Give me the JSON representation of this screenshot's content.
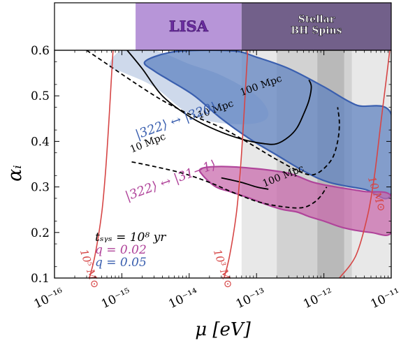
{
  "chart_data": {
    "type": "area",
    "title": "",
    "xlabel": "μ [eV]",
    "ylabel": "αᵢ",
    "xscale": "log",
    "xlim": [
      1e-16,
      1e-11
    ],
    "ylim": [
      0.1,
      0.6
    ],
    "x_ticks": [
      {
        "value": 1e-16,
        "label": "10⁻¹⁶"
      },
      {
        "value": 1e-15,
        "label": "10⁻¹⁵"
      },
      {
        "value": 1e-14,
        "label": "10⁻¹⁴"
      },
      {
        "value": 1e-13,
        "label": "10⁻¹³"
      },
      {
        "value": 1e-12,
        "label": "10⁻¹²"
      },
      {
        "value": 1e-11,
        "label": "10⁻¹¹"
      }
    ],
    "y_ticks": [
      {
        "value": 0.1,
        "label": "0.1"
      },
      {
        "value": 0.2,
        "label": "0.2"
      },
      {
        "value": 0.3,
        "label": "0.3"
      },
      {
        "value": 0.4,
        "label": "0.4"
      },
      {
        "value": 0.5,
        "label": "0.5"
      },
      {
        "value": 0.6,
        "label": "0.6"
      }
    ],
    "top_bands": [
      {
        "label": "LISA",
        "x_range": [
          1.6e-15,
          6e-14
        ],
        "color": "#b795d8",
        "text_color": "#6a2ca0"
      },
      {
        "label_lines": [
          "Stellar",
          "BH Spins"
        ],
        "x_range": [
          6e-14,
          1e-11
        ],
        "color": "#72608a",
        "text_color": "#ffffff"
      }
    ],
    "shaded_bands": [
      {
        "x_range": [
          6e-14,
          1e-11
        ],
        "color": "#e8e8e8"
      },
      {
        "x_range": [
          2e-13,
          2.6e-12
        ],
        "color": "#d2d2d2"
      },
      {
        "x_range": [
          8e-13,
          2e-12
        ],
        "color": "#b9b9b9"
      }
    ],
    "regions": [
      {
        "name": "blue-region-outer",
        "color": "#c5d2e8",
        "points": [
          [
            6.5e-16,
            0.565
          ],
          [
            1e-15,
            0.6
          ],
          [
            3e-15,
            0.6
          ],
          [
            1e-14,
            0.57
          ],
          [
            3e-14,
            0.545
          ],
          [
            1e-13,
            0.5
          ],
          [
            1.5e-13,
            0.46
          ],
          [
            1e-13,
            0.44
          ],
          [
            3e-14,
            0.44
          ],
          [
            1e-14,
            0.46
          ],
          [
            3e-15,
            0.52
          ],
          [
            1.1e-15,
            0.55
          ]
        ]
      },
      {
        "name": "blue-region",
        "color": "#5b7fbf",
        "stroke": "#3a5faf",
        "points": [
          [
            2.2e-15,
            0.575
          ],
          [
            5e-15,
            0.595
          ],
          [
            1.5e-14,
            0.6
          ],
          [
            5e-14,
            0.598
          ],
          [
            1e-13,
            0.585
          ],
          [
            3e-13,
            0.56
          ],
          [
            1e-12,
            0.52
          ],
          [
            3e-12,
            0.48
          ],
          [
            1e-11,
            0.46
          ],
          [
            1e-11,
            0.285
          ],
          [
            4e-12,
            0.295
          ],
          [
            1.2e-12,
            0.31
          ],
          [
            5e-13,
            0.335
          ],
          [
            2e-13,
            0.37
          ],
          [
            8e-14,
            0.405
          ],
          [
            3e-14,
            0.45
          ],
          [
            1.2e-14,
            0.5
          ],
          [
            5e-15,
            0.535
          ],
          [
            3e-15,
            0.555
          ]
        ]
      },
      {
        "name": "magenta-region",
        "color": "#c867aa",
        "stroke": "#b0449a",
        "points": [
          [
            1.5e-14,
            0.34
          ],
          [
            3e-14,
            0.345
          ],
          [
            1e-13,
            0.34
          ],
          [
            3e-13,
            0.33
          ],
          [
            7e-13,
            0.31
          ],
          [
            1.5e-12,
            0.3
          ],
          [
            4e-12,
            0.29
          ],
          [
            1e-11,
            0.28
          ],
          [
            1e-11,
            0.2
          ],
          [
            5e-12,
            0.2
          ],
          [
            2e-12,
            0.21
          ],
          [
            1e-12,
            0.225
          ],
          [
            6e-13,
            0.235
          ],
          [
            4e-13,
            0.245
          ],
          [
            2.5e-13,
            0.25
          ],
          [
            1.5e-13,
            0.26
          ],
          [
            8e-14,
            0.275
          ],
          [
            4e-14,
            0.29
          ],
          [
            2.5e-14,
            0.3
          ],
          [
            1.6e-14,
            0.325
          ]
        ]
      }
    ],
    "series": [
      {
        "name": "solid-blue-100Mpc",
        "style": "solid",
        "color": "#000000",
        "points": [
          [
            1.2e-15,
            0.6
          ],
          [
            2e-15,
            0.56
          ],
          [
            4e-15,
            0.5
          ],
          [
            1e-14,
            0.455
          ],
          [
            2.5e-14,
            0.425
          ],
          [
            6e-14,
            0.405
          ],
          [
            1.3e-13,
            0.395
          ],
          [
            2e-13,
            0.395
          ],
          [
            3e-13,
            0.41
          ],
          [
            4e-13,
            0.43
          ],
          [
            5e-13,
            0.46
          ],
          [
            6e-13,
            0.49
          ],
          [
            6.5e-13,
            0.52
          ],
          [
            6e-13,
            0.535
          ]
        ]
      },
      {
        "name": "dashed-blue-10Mpc",
        "style": "dashed",
        "color": "#000000",
        "points": [
          [
            3e-16,
            0.6
          ],
          [
            6e-16,
            0.57
          ],
          [
            1.5e-15,
            0.53
          ],
          [
            4e-15,
            0.49
          ],
          [
            1e-14,
            0.46
          ],
          [
            3e-14,
            0.43
          ],
          [
            8e-14,
            0.395
          ],
          [
            2e-13,
            0.36
          ],
          [
            5e-13,
            0.33
          ],
          [
            8e-13,
            0.33
          ],
          [
            1.3e-12,
            0.36
          ],
          [
            1.6e-12,
            0.4
          ],
          [
            1.7e-12,
            0.44
          ],
          [
            1.6e-12,
            0.475
          ]
        ]
      },
      {
        "name": "solid-magenta-100Mpc",
        "style": "solid",
        "color": "#000000",
        "points": [
          [
            3e-14,
            0.32
          ],
          [
            6e-14,
            0.31
          ],
          [
            1e-13,
            0.3
          ],
          [
            1.5e-13,
            0.295
          ]
        ]
      },
      {
        "name": "dashed-magenta-10Mpc",
        "style": "dashed",
        "color": "#000000",
        "points": [
          [
            1.4e-15,
            0.355
          ],
          [
            3e-15,
            0.345
          ],
          [
            8e-15,
            0.33
          ],
          [
            2e-14,
            0.31
          ],
          [
            5e-14,
            0.285
          ],
          [
            1.2e-13,
            0.265
          ],
          [
            3e-13,
            0.255
          ],
          [
            5e-13,
            0.255
          ],
          [
            7e-13,
            0.265
          ],
          [
            9e-13,
            0.28
          ],
          [
            1.1e-12,
            0.3
          ]
        ]
      },
      {
        "name": "red-1e5-Msun",
        "style": "solid",
        "color": "#d64545",
        "points": [
          [
            3.3e-16,
            0.1
          ],
          [
            4e-16,
            0.15
          ],
          [
            5e-16,
            0.24
          ],
          [
            5.7e-16,
            0.33
          ],
          [
            6.4e-16,
            0.44
          ],
          [
            7e-16,
            0.54
          ],
          [
            7.4e-16,
            0.6
          ]
        ]
      },
      {
        "name": "red-1e3-Msun",
        "style": "solid",
        "color": "#d64545",
        "points": [
          [
            3.3e-14,
            0.1
          ],
          [
            4e-14,
            0.15
          ],
          [
            5e-14,
            0.24
          ],
          [
            5.7e-14,
            0.33
          ],
          [
            6.4e-14,
            0.44
          ],
          [
            7e-14,
            0.54
          ],
          [
            7.4e-14,
            0.6
          ]
        ]
      },
      {
        "name": "red-10-Msun",
        "style": "solid",
        "color": "#d64545",
        "points": [
          [
            1.7e-12,
            0.1
          ],
          [
            3e-12,
            0.15
          ],
          [
            4.5e-12,
            0.24
          ],
          [
            5.7e-12,
            0.33
          ],
          [
            7e-12,
            0.44
          ],
          [
            8.5e-12,
            0.54
          ],
          [
            9.5e-12,
            0.6
          ]
        ]
      }
    ],
    "annotations": [
      {
        "text": "100 Mpc",
        "x": 6e-14,
        "y": 0.5,
        "rotate": 20,
        "color": "#000000",
        "size": 14
      },
      {
        "text": "10 Mpc",
        "x": 1.4e-14,
        "y": 0.45,
        "rotate": 20,
        "color": "#000000",
        "size": 14
      },
      {
        "text": "10 Mpc",
        "x": 1.4e-15,
        "y": 0.375,
        "rotate": 22,
        "color": "#000000",
        "size": 14
      },
      {
        "text": "100 Mpc",
        "x": 1.3e-13,
        "y": 0.3,
        "rotate": 22,
        "color": "#000000",
        "size": 14
      },
      {
        "text": "|322⟩ ↔ |320⟩",
        "x": 1.7e-15,
        "y": 0.405,
        "rotate": 20,
        "color": "#3a5faf",
        "size": 18
      },
      {
        "text": "|322⟩ ↔ |31−1⟩",
        "x": 1.2e-15,
        "y": 0.27,
        "rotate": 20,
        "color": "#b0449a",
        "size": 18
      },
      {
        "text": "10⁵ M⊙",
        "x": 2.4e-16,
        "y": 0.16,
        "rotate": -72,
        "color": "#d64545",
        "size": 15
      },
      {
        "text": "10³ M⊙",
        "x": 2.3e-14,
        "y": 0.16,
        "rotate": -72,
        "color": "#d64545",
        "size": 15
      },
      {
        "text": "10 M⊙",
        "x": 4.5e-12,
        "y": 0.32,
        "rotate": -72,
        "color": "#d64545",
        "size": 15
      }
    ],
    "legend_text": [
      {
        "text": "tₛᵧₛ = 10⁸ yr",
        "color": "#000000"
      },
      {
        "text": "q = 0.02",
        "color": "#b0449a"
      },
      {
        "text": "q = 0.05",
        "color": "#3a5faf"
      }
    ]
  }
}
